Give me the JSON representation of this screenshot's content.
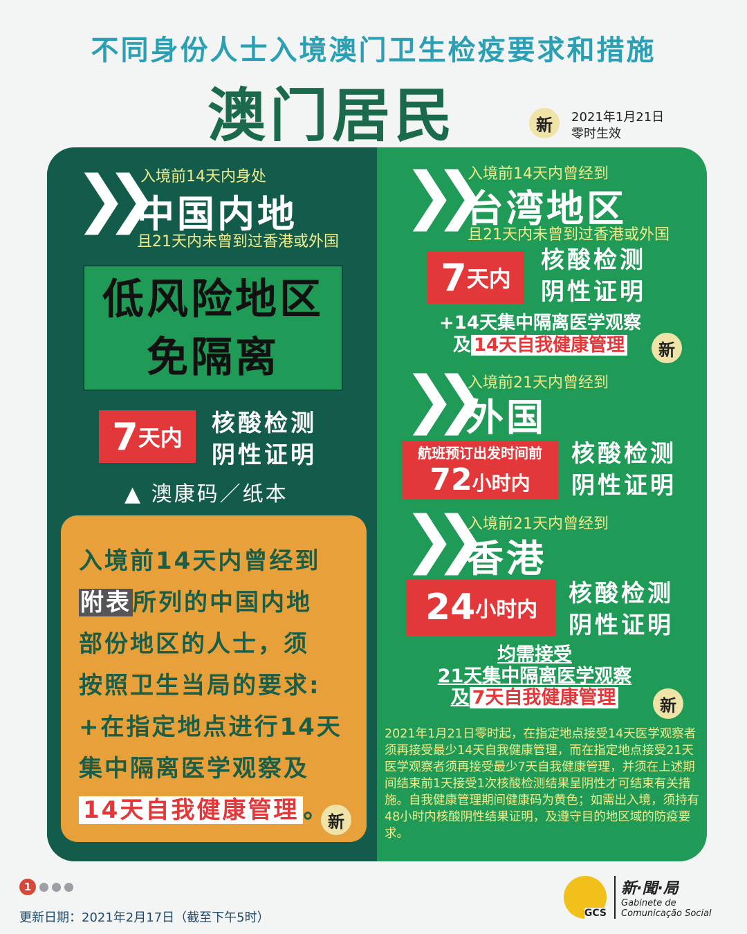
{
  "header": {
    "title": "不同身份人士入境澳门卫生检疫要求和措施",
    "subtitle": "澳门居民",
    "new_badge": "新",
    "effective_line1": "2021年1月21日",
    "effective_line2": "零时生效"
  },
  "mainland": {
    "pre": "入境前14天内身处",
    "region": "中国内地",
    "cond": "且21天内未曾到过香港或外国",
    "low_risk_1": "低风险地区",
    "low_risk_2": "免隔离",
    "days_num": "7",
    "days_unit": "天内",
    "test_1": "核酸检测",
    "test_2": "阴性证明",
    "code": "▲ 澳康码／纸本"
  },
  "orange": {
    "line1": "入境前14天内曾经到",
    "tag": "附表",
    "line2": "所列的中国内地",
    "line3": "部份地区的人士，须",
    "line4": "按照卫生当局的要求:",
    "line5": "+在指定地点进行14天",
    "line6": "集中隔离医学观察及",
    "line7": "14天自我健康管理",
    "period": "。",
    "new_badge": "新"
  },
  "taiwan": {
    "pre": "入境前14天内曾经到",
    "region": "台湾地区",
    "cond": "且21天内未曾到过香港或外国",
    "days_num": "7",
    "days_unit": "天内",
    "test_1": "核酸检测",
    "test_2": "阴性证明",
    "extra_1": "+14天集中隔离医学观察",
    "extra_2a": "及",
    "extra_2b": "14天自我健康管理",
    "new_badge": "新"
  },
  "foreign": {
    "pre": "入境前21天内曾经到",
    "region": "外国",
    "flight": "航班预订出发时间前",
    "hours_num": "72",
    "hours_unit": "小时内",
    "test_1": "核酸检测",
    "test_2": "阴性证明"
  },
  "hongkong": {
    "pre": "入境前21天内曾经到",
    "region": "香港",
    "hours_num": "24",
    "hours_unit": "小时内",
    "test_1": "核酸检测",
    "test_2": "阴性证明",
    "req_1": "均需接受",
    "req_2": "21天集中隔离医学观察",
    "req_3a": "及",
    "req_3b": "7天自我健康管理",
    "new_badge": "新"
  },
  "note": "2021年1月21日零时起，在指定地点接受14天医学观察者须再接受最少14天自我健康管理，而在指定地点接受21天医学观察者须再接受最少7天自我健康管理，并须在上述期间结束前1天接受1次核酸检测结果呈阴性才可结束有关措施。自我健康管理期间健康码为黄色；如需出入境，须持有48小时内核酸阴性结果证明，及遵守目的地区域的防疫要求。",
  "footer": {
    "page_current": "1",
    "update": "更新日期：2021年2月17日（截至下午5时）",
    "logo_cn": "新·聞·局",
    "logo_pt1": "Gabinete de",
    "logo_pt2": "Comunicação Social",
    "logo_mark": "GCS"
  }
}
